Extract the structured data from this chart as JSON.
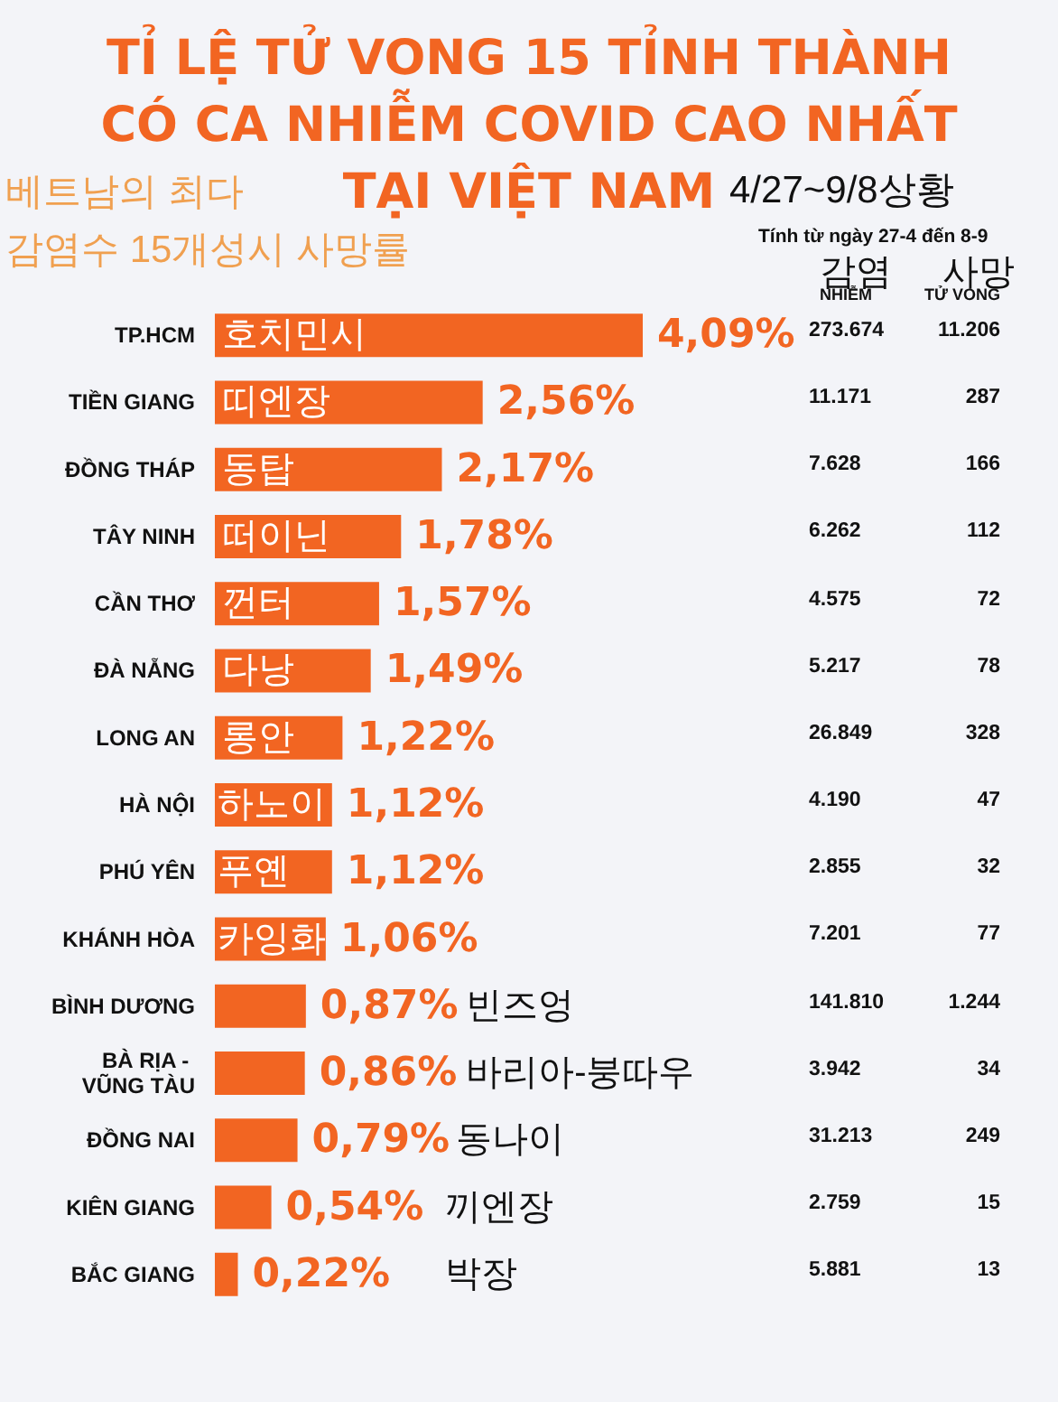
{
  "chart_data": [
    {
      "type": "bar",
      "orientation": "horizontal",
      "title": "TỈ LỆ TỬ VONG 15 TỈNH THÀNH CÓ CA NHIỄM COVID CAO NHẤT TẠI VIỆT NAM",
      "categories": [
        "TP.HCM",
        "TIỀN GIANG",
        "ĐỒNG THÁP",
        "TÂY NINH",
        "CẦN THƠ",
        "ĐÀ NẴNG",
        "LONG AN",
        "HÀ NỘI",
        "PHÚ YÊN",
        "KHÁNH HÒA",
        "BÌNH DƯƠNG",
        "BÀ RỊA - VŨNG TÀU",
        "ĐỒNG NAI",
        "KIÊN GIANG",
        "BẮC GIANG"
      ],
      "values": [
        4.09,
        2.56,
        2.17,
        1.78,
        1.57,
        1.49,
        1.22,
        1.12,
        1.12,
        1.06,
        0.87,
        0.86,
        0.79,
        0.54,
        0.22
      ],
      "value_labels": [
        "4,09%",
        "2,56%",
        "2,17%",
        "1,78%",
        "1,57%",
        "1,49%",
        "1,22%",
        "1,12%",
        "1,12%",
        "1,06%",
        "0,87%",
        "0,86%",
        "0,79%",
        "0,54%",
        "0,22%"
      ],
      "color": "#f26522",
      "tick_labels": "y",
      "grid": false,
      "annotations": [
        "베트남의 최다",
        "감염수 15개성시 사망률",
        "4/27~9/8상황",
        "호치민시",
        "띠엔장",
        "동탑",
        "떠이닌",
        "껀터",
        "다낭",
        "롱안",
        "하노이",
        "푸옌",
        "카잉화",
        "빈즈엉",
        "바리아-붕따우",
        "동나이",
        "끼엔장",
        "박장"
      ]
    },
    {
      "type": "other",
      "title": "Tính từ ngày 27-4 đến 8-9",
      "annotations": [
        "감염",
        "사망",
        "NHIỄM",
        "TỬ VONG",
        "273.674",
        "11.206",
        "11.171",
        "287",
        "7.628",
        "166",
        "6.262",
        "112",
        "4.575",
        "72",
        "5.217",
        "78",
        "26.849",
        "328",
        "4.190",
        "47",
        "2.855",
        "32",
        "7.201",
        "77",
        "141.810",
        "1.244",
        "3.942",
        "34",
        "31.213",
        "249",
        "2.759",
        "15",
        "5.881",
        "13"
      ]
    }
  ]
}
